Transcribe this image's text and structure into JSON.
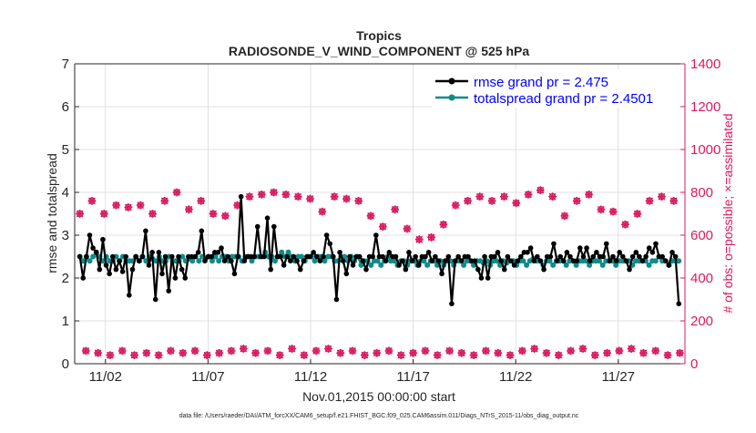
{
  "colors": {
    "rmse": "#000000",
    "spread": "#0e8c8a",
    "obs": "#d81b60",
    "axis": "#262626",
    "grid": "#d9d9d9"
  },
  "chart_data": {
    "type": "line",
    "title": "Tropics",
    "subtitle": "RADIOSONDE_V_WIND_COMPONENT @ 525 hPa",
    "xlabel": "Nov.01,2015 00:00:00 start",
    "ylabel_left": "rmse and totalspread",
    "ylabel_right": "# of obs: o=possible; ×=assimilated",
    "footnote": "data file: /Users/raeder/DAI/ATM_forcXX/CAM6_setup/f.e21.FHIST_BGC.f09_025.CAM6assim.011/Diags_NTrS_2015-11/obs_diag_output.nc",
    "xlim": [
      0.5,
      30.25
    ],
    "ylim_left": [
      0,
      7
    ],
    "ylim_right": [
      0,
      1400
    ],
    "x_ticks": [
      {
        "value": 2,
        "label": "11/02"
      },
      {
        "value": 7,
        "label": "11/07"
      },
      {
        "value": 12,
        "label": "11/12"
      },
      {
        "value": 17,
        "label": "11/17"
      },
      {
        "value": 22,
        "label": "11/22"
      },
      {
        "value": 27,
        "label": "11/27"
      }
    ],
    "y_ticks_left": [
      "0",
      "1",
      "2",
      "3",
      "4",
      "5",
      "6",
      "7"
    ],
    "y_ticks_right": [
      "0",
      "200",
      "400",
      "600",
      "800",
      "1000",
      "1200",
      "1400"
    ],
    "legend": [
      {
        "label": "rmse grand pr = 2.475",
        "series": "rmse"
      },
      {
        "label": "totalspread grand pr = 2.4501",
        "series": "spread"
      }
    ],
    "legend_position": "top-right",
    "x_step": 0.25,
    "x_start": 0.75,
    "series": [
      {
        "name": "rmse",
        "axis": "left",
        "color": "#000000",
        "values": [
          2.5,
          2.0,
          2.5,
          3.0,
          2.7,
          2.6,
          2.2,
          2.9,
          2.3,
          2.1,
          2.5,
          2.2,
          2.4,
          2.15,
          2.5,
          1.6,
          2.2,
          2.5,
          2.4,
          2.5,
          3.1,
          2.3,
          2.6,
          1.5,
          2.6,
          2.1,
          2.5,
          1.7,
          2.5,
          2.0,
          2.5,
          2.2,
          2.0,
          2.5,
          2.5,
          2.5,
          2.6,
          3.1,
          2.4,
          2.5,
          2.5,
          2.6,
          2.6,
          2.7,
          2.4,
          2.5,
          2.4,
          2.1,
          2.5,
          3.9,
          2.4,
          2.5,
          2.5,
          2.5,
          3.2,
          2.5,
          2.5,
          3.4,
          2.2,
          3.2,
          2.5,
          2.5,
          2.3,
          2.5,
          2.4,
          2.5,
          2.4,
          2.2,
          2.4,
          2.5,
          2.5,
          2.6,
          2.5,
          2.4,
          2.5,
          3.0,
          2.8,
          2.5,
          1.5,
          2.6,
          2.4,
          2.1,
          2.5,
          2.3,
          2.5,
          2.5,
          2.4,
          2.2,
          2.5,
          2.5,
          3.0,
          2.5,
          2.5,
          2.4,
          2.6,
          2.5,
          2.5,
          2.3,
          2.4,
          2.2,
          2.6,
          2.4,
          2.5,
          2.3,
          2.5,
          2.5,
          2.6,
          2.4,
          2.5,
          2.4,
          2.1,
          2.4,
          2.5,
          1.4,
          2.4,
          2.5,
          2.4,
          2.5,
          2.5,
          2.4,
          2.4,
          2.2,
          2.0,
          2.5,
          2.0,
          2.5,
          2.5,
          2.6,
          2.4,
          2.2,
          2.5,
          2.4,
          2.3,
          2.4,
          2.5,
          2.6,
          2.6,
          2.7,
          2.4,
          2.5,
          2.4,
          2.2,
          2.5,
          2.5,
          2.8,
          2.4,
          2.5,
          2.4,
          2.6,
          2.5,
          2.4,
          2.4,
          2.7,
          2.5,
          2.7,
          2.4,
          2.5,
          2.6,
          2.5,
          2.5,
          2.8,
          2.4,
          2.5,
          2.4,
          2.6,
          2.5,
          2.4,
          2.2,
          2.5,
          2.6,
          2.5,
          2.4,
          2.5,
          2.7,
          2.6,
          2.8,
          2.5,
          2.5,
          2.4,
          2.3,
          2.6,
          2.5,
          1.4
        ]
      },
      {
        "name": "totalspread",
        "axis": "left",
        "color": "#0e8c8a",
        "values": [
          2.5,
          2.4,
          2.5,
          2.4,
          2.5,
          2.6,
          2.5,
          2.4,
          2.5,
          2.4,
          2.4,
          2.5,
          2.4,
          2.5,
          2.4,
          2.4,
          2.4,
          2.5,
          2.4,
          2.5,
          2.4,
          2.5,
          2.45,
          2.4,
          2.5,
          2.4,
          2.4,
          2.5,
          2.4,
          2.4,
          2.4,
          2.5,
          2.4,
          2.45,
          2.4,
          2.5,
          2.4,
          2.5,
          2.45,
          2.5,
          2.4,
          2.5,
          2.4,
          2.5,
          2.5,
          2.4,
          2.5,
          2.5,
          2.5,
          2.4,
          2.5,
          2.5,
          2.4,
          2.5,
          2.5,
          2.5,
          2.6,
          2.5,
          2.5,
          2.4,
          2.5,
          2.6,
          2.5,
          2.6,
          2.5,
          2.4,
          2.5,
          2.5,
          2.4,
          2.5,
          2.5,
          2.4,
          2.5,
          2.5,
          2.4,
          2.5,
          2.5,
          2.4,
          2.4,
          2.5,
          2.5,
          2.4,
          2.5,
          2.4,
          2.5,
          2.3,
          2.4,
          2.4,
          2.3,
          2.4,
          2.4,
          2.3,
          2.4,
          2.5,
          2.4,
          2.4,
          2.3,
          2.4,
          2.4,
          2.3,
          2.4,
          2.4,
          2.3,
          2.4,
          2.4,
          2.3,
          2.4,
          2.4,
          2.3,
          2.4,
          2.3,
          2.4,
          2.4,
          2.3,
          2.4,
          2.4,
          2.3,
          2.4,
          2.4,
          2.3,
          2.4,
          2.4,
          2.35,
          2.4,
          2.3,
          2.4,
          2.4,
          2.3,
          2.4,
          2.35,
          2.4,
          2.4,
          2.3,
          2.4,
          2.4,
          2.3,
          2.4,
          2.45,
          2.4,
          2.4,
          2.3,
          2.4,
          2.4,
          2.3,
          2.4,
          2.4,
          2.4,
          2.3,
          2.4,
          2.4,
          2.3,
          2.4,
          2.4,
          2.4,
          2.3,
          2.4,
          2.4,
          2.4,
          2.3,
          2.4,
          2.4,
          2.4,
          2.3,
          2.4,
          2.4,
          2.4,
          2.4,
          2.3,
          2.4,
          2.4,
          2.4,
          2.4,
          2.3,
          2.4,
          2.4,
          2.5,
          2.4,
          2.4,
          2.3,
          2.4,
          2.4,
          2.4
        ]
      },
      {
        "name": "obs possible",
        "axis": "right",
        "color": "#d81b60",
        "values": [
          700,
          60,
          760,
          50,
          700,
          40,
          740,
          60,
          730,
          40,
          740,
          50,
          700,
          40,
          760,
          60,
          800,
          50,
          720,
          60,
          760,
          40,
          700,
          50,
          690,
          60,
          740,
          70,
          780,
          50,
          790,
          60,
          800,
          40,
          790,
          70,
          780,
          40,
          770,
          60,
          710,
          70,
          780,
          50,
          770,
          60,
          760,
          40,
          690,
          50,
          640,
          60,
          720,
          40,
          630,
          50,
          580,
          60,
          590,
          40,
          650,
          60,
          740,
          50,
          760,
          40,
          780,
          60,
          760,
          50,
          780,
          40,
          750,
          60,
          790,
          70,
          810,
          50,
          780,
          40,
          690,
          60,
          760,
          70,
          790,
          40,
          720,
          50,
          710,
          60,
          650,
          70,
          700,
          50,
          760,
          60,
          780,
          40,
          760,
          50
        ]
      },
      {
        "name": "obs assimilated",
        "axis": "right",
        "color": "#d81b60",
        "values": [
          700,
          60,
          760,
          50,
          700,
          40,
          740,
          60,
          730,
          40,
          740,
          50,
          700,
          40,
          760,
          60,
          800,
          50,
          720,
          60,
          760,
          40,
          700,
          50,
          690,
          60,
          740,
          70,
          780,
          50,
          790,
          60,
          800,
          40,
          790,
          70,
          780,
          40,
          770,
          60,
          710,
          70,
          780,
          50,
          770,
          60,
          760,
          40,
          690,
          50,
          640,
          60,
          720,
          40,
          630,
          50,
          580,
          60,
          590,
          40,
          650,
          60,
          740,
          50,
          760,
          40,
          780,
          60,
          760,
          50,
          780,
          40,
          750,
          60,
          790,
          70,
          810,
          50,
          780,
          40,
          690,
          60,
          760,
          70,
          790,
          40,
          720,
          50,
          710,
          60,
          650,
          70,
          700,
          50,
          760,
          60,
          780,
          40,
          760,
          50
        ]
      }
    ]
  }
}
